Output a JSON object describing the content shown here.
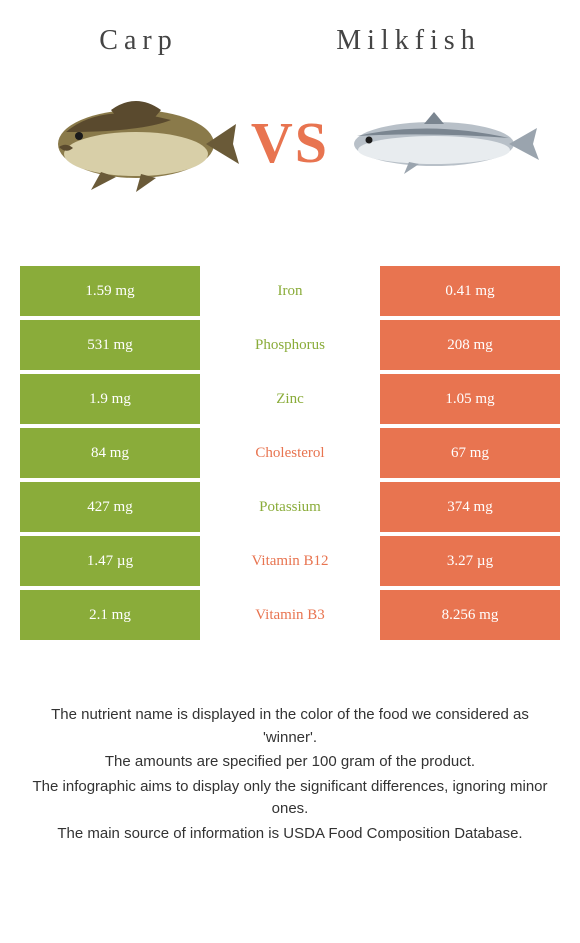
{
  "header": {
    "left_title": "Carp",
    "right_title": "Milkfish",
    "vs": "VS"
  },
  "colors": {
    "carp": "#8aac3a",
    "milkfish": "#e87450",
    "vs": "#e87450",
    "carp_body": "#8a7a4a",
    "carp_dark": "#5a4a2e",
    "carp_belly": "#d8cfa8",
    "milkfish_body": "#b8c0c8",
    "milkfish_dark": "#7a8590",
    "milkfish_belly": "#e8ecef"
  },
  "rows": [
    {
      "left": "1.59 mg",
      "label": "Iron",
      "right": "0.41 mg",
      "winner": "carp"
    },
    {
      "left": "531 mg",
      "label": "Phosphorus",
      "right": "208 mg",
      "winner": "carp"
    },
    {
      "left": "1.9 mg",
      "label": "Zinc",
      "right": "1.05 mg",
      "winner": "carp"
    },
    {
      "left": "84 mg",
      "label": "Cholesterol",
      "right": "67 mg",
      "winner": "milkfish"
    },
    {
      "left": "427 mg",
      "label": "Potassium",
      "right": "374 mg",
      "winner": "carp"
    },
    {
      "left": "1.47 µg",
      "label": "Vitamin B12",
      "right": "3.27 µg",
      "winner": "milkfish"
    },
    {
      "left": "2.1 mg",
      "label": "Vitamin B3",
      "right": "8.256 mg",
      "winner": "milkfish"
    }
  ],
  "footer": {
    "line1": "The nutrient name is displayed in the color of the food we considered as 'winner'.",
    "line2": "The amounts are specified per 100 gram of the product.",
    "line3": "The infographic aims to display only the significant differences, ignoring minor ones.",
    "line4": "The main source of information is USDA Food Composition Database."
  }
}
